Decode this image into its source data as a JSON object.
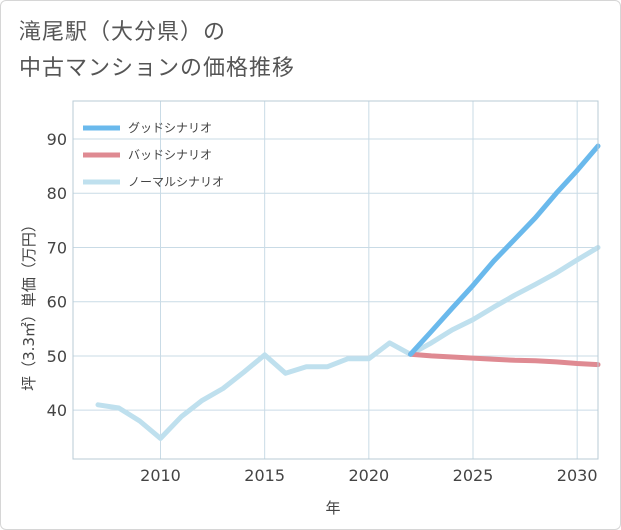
{
  "title_line1": "滝尾駅（大分県）の",
  "title_line2": "中古マンションの価格推移",
  "chart_data": {
    "type": "line",
    "title": "滝尾駅（大分県）の中古マンションの価格推移",
    "xlabel": "年",
    "ylabel": "坪（3.3㎡）単価（万円）",
    "xlim": [
      2005.8,
      2031
    ],
    "ylim": [
      31,
      97
    ],
    "xticks": [
      2010,
      2015,
      2020,
      2025,
      2030
    ],
    "yticks": [
      40,
      50,
      60,
      70,
      80,
      90
    ],
    "grid": true,
    "legend_position": "top-left",
    "series": [
      {
        "name": "グッドシナリオ",
        "color": "#6ab9ec",
        "x": [
          2022,
          2023,
          2024,
          2025,
          2026,
          2027,
          2028,
          2029,
          2030,
          2031
        ],
        "y": [
          50.3,
          54.5,
          58.8,
          63.0,
          67.5,
          71.5,
          75.5,
          80.0,
          84.2,
          88.7
        ]
      },
      {
        "name": "バッドシナリオ",
        "color": "#df8a92",
        "x": [
          2022,
          2023,
          2024,
          2025,
          2026,
          2027,
          2028,
          2029,
          2030,
          2031
        ],
        "y": [
          50.3,
          50.0,
          49.8,
          49.6,
          49.4,
          49.2,
          49.1,
          48.9,
          48.6,
          48.4
        ]
      },
      {
        "name": "ノーマルシナリオ",
        "color": "#bfe0ee",
        "x": [
          2007,
          2008,
          2009,
          2010,
          2011,
          2012,
          2013,
          2014,
          2015,
          2016,
          2017,
          2018,
          2019,
          2020,
          2021,
          2022,
          2023,
          2024,
          2025,
          2026,
          2027,
          2028,
          2029,
          2030,
          2031
        ],
        "y": [
          41.0,
          40.4,
          38.0,
          34.8,
          38.8,
          41.8,
          44.0,
          47.0,
          50.2,
          46.8,
          48.0,
          48.0,
          49.5,
          49.5,
          52.4,
          50.3,
          52.4,
          54.8,
          56.7,
          59.0,
          61.2,
          63.2,
          65.3,
          67.7,
          70.0
        ]
      }
    ]
  }
}
